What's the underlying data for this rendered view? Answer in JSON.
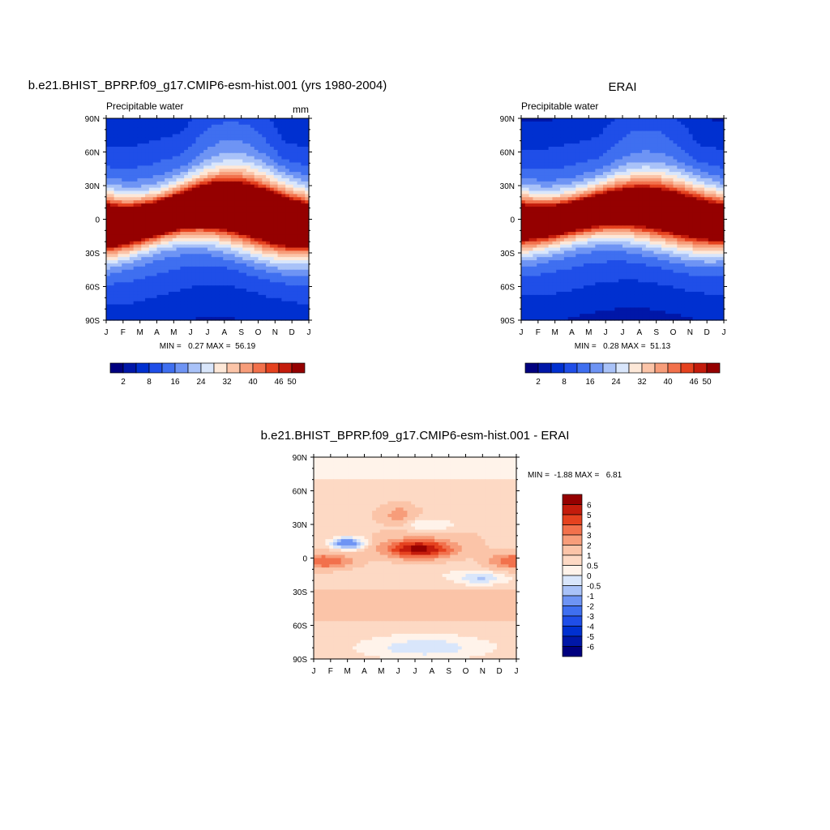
{
  "chart_data": [
    {
      "type": "heatmap",
      "title": "b.e21.BHIST_BPRP.f09_g17.CMIP6-esm-hist.001 (yrs 1980-2004)",
      "subtitle_left": "Precipitable water",
      "subtitle_right": "mm",
      "x_ticks": [
        "J",
        "F",
        "M",
        "A",
        "M",
        "J",
        "J",
        "A",
        "S",
        "O",
        "N",
        "D",
        "J"
      ],
      "y_ticks": [
        "90N",
        "60N",
        "30N",
        "0",
        "30S",
        "60S",
        "90S"
      ],
      "stats": "MIN =   0.27 MAX =  56.19",
      "min": 0.27,
      "max": 56.19,
      "colorbar_labels": [
        "2",
        "8",
        "16",
        "24",
        "32",
        "40",
        "46",
        "50"
      ],
      "field": "model"
    },
    {
      "type": "heatmap",
      "title": "ERAI",
      "subtitle_left": "Precipitable water",
      "subtitle_right": "",
      "x_ticks": [
        "J",
        "F",
        "M",
        "A",
        "M",
        "J",
        "J",
        "A",
        "S",
        "O",
        "N",
        "D",
        "J"
      ],
      "y_ticks": [
        "90N",
        "60N",
        "30N",
        "0",
        "30S",
        "60S",
        "90S"
      ],
      "stats": "MIN =   0.28 MAX =  51.13",
      "min": 0.28,
      "max": 51.13,
      "colorbar_labels": [
        "2",
        "8",
        "16",
        "24",
        "32",
        "40",
        "46",
        "50"
      ],
      "field": "obs"
    },
    {
      "type": "heatmap",
      "title": "b.e21.BHIST_BPRP.f09_g17.CMIP6-esm-hist.001 - ERAI",
      "x_ticks": [
        "J",
        "F",
        "M",
        "A",
        "M",
        "J",
        "J",
        "A",
        "S",
        "O",
        "N",
        "D",
        "J"
      ],
      "y_ticks": [
        "90N",
        "60N",
        "30N",
        "0",
        "30S",
        "60S",
        "90S"
      ],
      "stats": "MIN =  -1.88 MAX =   6.81",
      "min": -1.88,
      "max": 6.81,
      "colorbar_labels": [
        "6",
        "5",
        "4",
        "3",
        "2",
        "1",
        "0.5",
        "0",
        "-0.5",
        "-1",
        "-2",
        "-3",
        "-4",
        "-5",
        "-6"
      ],
      "field": "diff"
    }
  ],
  "palettes": {
    "abs": [
      "#00007f",
      "#0017a8",
      "#0030d0",
      "#1f4ee8",
      "#3f6ff0",
      "#6e94f4",
      "#a9c2f8",
      "#d9e6fb",
      "#fde8d8",
      "#fbc4a8",
      "#f79d7a",
      "#f2714c",
      "#e5421f",
      "#c41c0c",
      "#950000"
    ],
    "diff": [
      "#950000",
      "#c41c0c",
      "#e5421f",
      "#f2714c",
      "#f79d7a",
      "#fbc4a8",
      "#fdd9c4",
      "#fff3ea",
      "#d9e6fb",
      "#a9c2f8",
      "#6e94f4",
      "#3f6ff0",
      "#1f4ee8",
      "#0030d0",
      "#0017a8",
      "#00007f"
    ]
  }
}
